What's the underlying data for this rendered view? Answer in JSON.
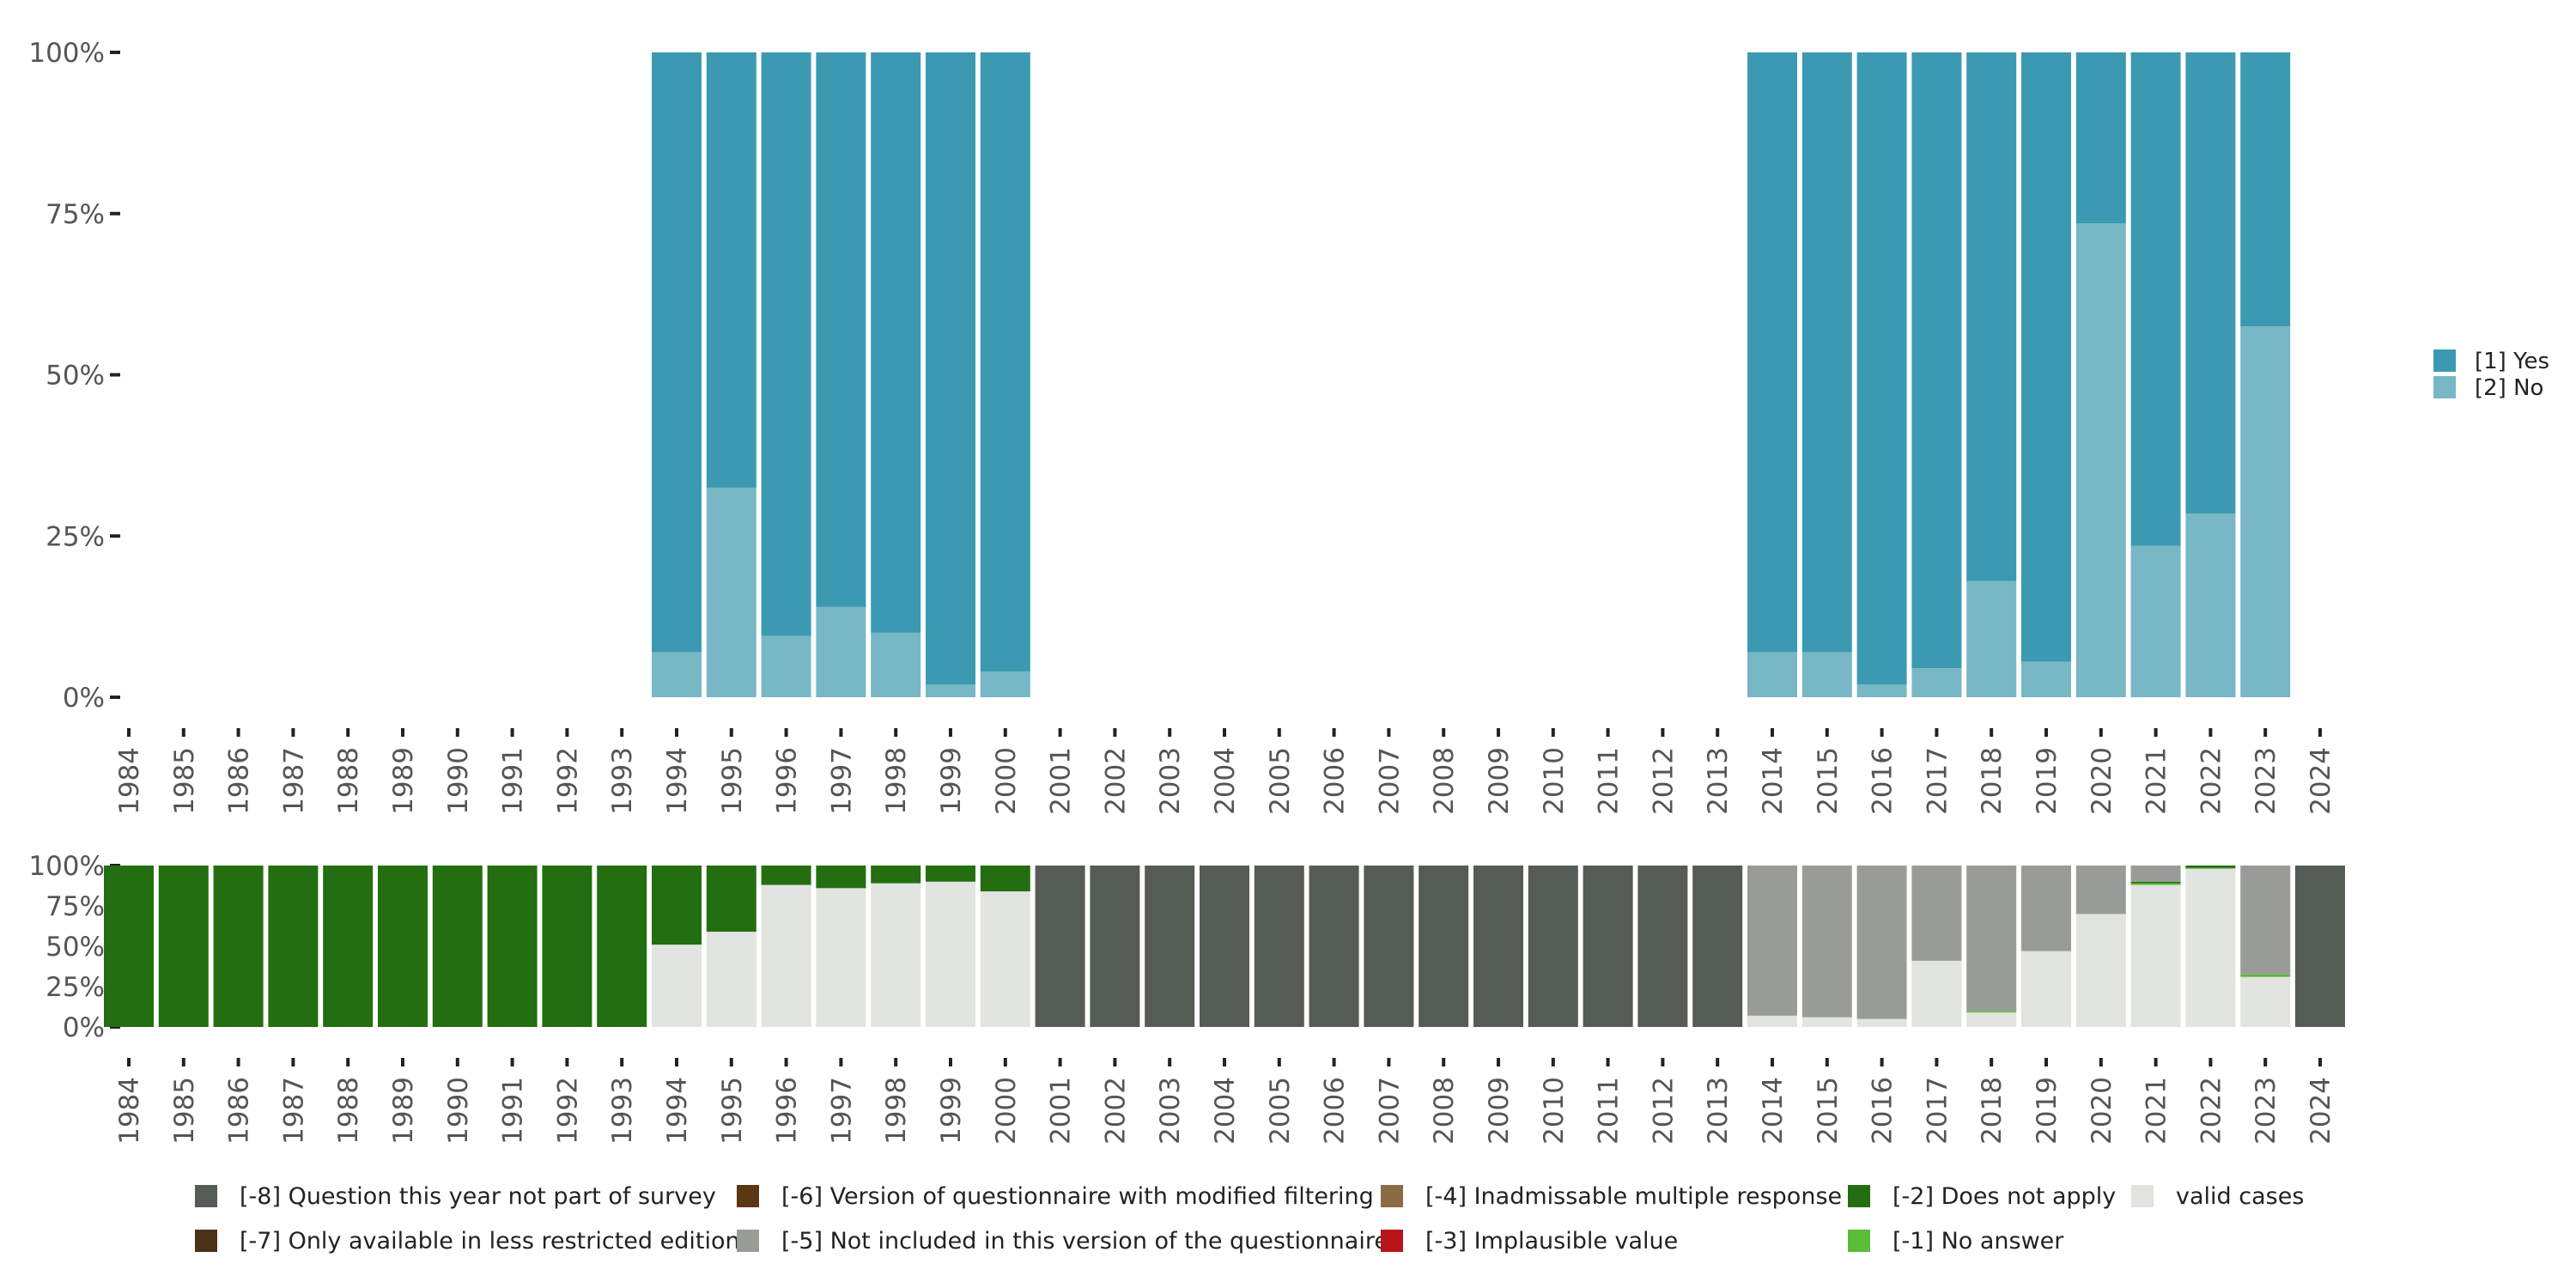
{
  "chart_data": [
    {
      "type": "bar",
      "stacked": true,
      "title": "",
      "xlabel": "",
      "ylabel": "",
      "ylim": [
        0,
        100
      ],
      "y_ticks": [
        "0%",
        "25%",
        "50%",
        "75%",
        "100%"
      ],
      "categories": [
        "1984",
        "1985",
        "1986",
        "1987",
        "1988",
        "1989",
        "1990",
        "1991",
        "1992",
        "1993",
        "1994",
        "1995",
        "1996",
        "1997",
        "1998",
        "1999",
        "2000",
        "2001",
        "2002",
        "2003",
        "2004",
        "2005",
        "2006",
        "2007",
        "2008",
        "2009",
        "2010",
        "2011",
        "2012",
        "2013",
        "2014",
        "2015",
        "2016",
        "2017",
        "2018",
        "2019",
        "2020",
        "2021",
        "2022",
        "2023",
        "2024"
      ],
      "series": [
        {
          "name": "[2] No",
          "color": "#78b7c5",
          "values": [
            null,
            null,
            null,
            null,
            null,
            null,
            null,
            null,
            null,
            null,
            7,
            32.5,
            9.5,
            14,
            10,
            2,
            4,
            null,
            null,
            null,
            null,
            null,
            null,
            null,
            null,
            null,
            null,
            null,
            null,
            null,
            7,
            7,
            2,
            4.5,
            18,
            5.5,
            73.5,
            23.5,
            28.5,
            57.5,
            null
          ]
        },
        {
          "name": "[1] Yes",
          "color": "#3b9ab2",
          "values": [
            null,
            null,
            null,
            null,
            null,
            null,
            null,
            null,
            null,
            null,
            93,
            67.5,
            90.5,
            86,
            90,
            98,
            96,
            null,
            null,
            null,
            null,
            null,
            null,
            null,
            null,
            null,
            null,
            null,
            null,
            null,
            93,
            93,
            98,
            95.5,
            82,
            94.5,
            26.5,
            76.5,
            71.5,
            42.5,
            null
          ]
        }
      ],
      "legend": {
        "position": "right",
        "entries": [
          {
            "label": "[1] Yes",
            "color": "#3b9ab2"
          },
          {
            "label": "[2] No",
            "color": "#78b7c5"
          }
        ]
      }
    },
    {
      "type": "bar",
      "stacked": true,
      "title": "",
      "xlabel": "",
      "ylabel": "",
      "ylim": [
        0,
        100
      ],
      "y_ticks": [
        "0%",
        "25%",
        "50%",
        "75%",
        "100%"
      ],
      "categories": [
        "1984",
        "1985",
        "1986",
        "1987",
        "1988",
        "1989",
        "1990",
        "1991",
        "1992",
        "1993",
        "1994",
        "1995",
        "1996",
        "1997",
        "1998",
        "1999",
        "2000",
        "2001",
        "2002",
        "2003",
        "2004",
        "2005",
        "2006",
        "2007",
        "2008",
        "2009",
        "2010",
        "2011",
        "2012",
        "2013",
        "2014",
        "2015",
        "2016",
        "2017",
        "2018",
        "2019",
        "2020",
        "2021",
        "2022",
        "2023",
        "2024"
      ],
      "series": [
        {
          "name": "valid cases",
          "color": "#e1e4df",
          "values": [
            0,
            0,
            0,
            0,
            0,
            0,
            0,
            0,
            0,
            0,
            51,
            59,
            88,
            86,
            89,
            90,
            84,
            0,
            0,
            0,
            0,
            0,
            0,
            0,
            0,
            0,
            0,
            0,
            0,
            0,
            7,
            6,
            5,
            41,
            9,
            47,
            70,
            88,
            98,
            31,
            0
          ]
        },
        {
          "name": "[-1] No answer",
          "color": "#5bbc3a",
          "values": [
            0,
            0,
            0,
            0,
            0,
            0,
            0,
            0,
            0,
            0,
            0,
            0,
            0,
            0,
            0,
            0,
            0,
            0,
            0,
            0,
            0,
            0,
            0,
            0,
            0,
            0,
            0,
            0,
            0,
            0,
            0,
            0,
            0,
            0,
            1,
            0,
            0,
            1,
            0.5,
            1.5,
            0
          ]
        },
        {
          "name": "[-2] Does not apply",
          "color": "#236e10",
          "values": [
            100,
            100,
            100,
            100,
            100,
            100,
            100,
            100,
            100,
            100,
            49,
            41,
            12,
            14,
            11,
            10,
            16,
            0,
            0,
            0,
            0,
            0,
            0,
            0,
            0,
            0,
            0,
            0,
            0,
            0,
            0,
            0,
            0,
            0,
            0,
            0,
            0,
            1,
            1.5,
            0,
            0
          ]
        },
        {
          "name": "[-5] Not included in this version of the questionnaire",
          "color": "#999c96",
          "values": [
            0,
            0,
            0,
            0,
            0,
            0,
            0,
            0,
            0,
            0,
            0,
            0,
            0,
            0,
            0,
            0,
            0,
            0,
            0,
            0,
            0,
            0,
            0,
            0,
            0,
            0,
            0,
            0,
            0,
            0,
            93,
            94,
            95,
            59,
            90,
            53,
            30,
            10,
            0,
            67.5,
            0
          ]
        },
        {
          "name": "[-8] Question this year not part of survey",
          "color": "#555b55",
          "values": [
            0,
            0,
            0,
            0,
            0,
            0,
            0,
            0,
            0,
            0,
            0,
            0,
            0,
            0,
            0,
            0,
            0,
            100,
            100,
            100,
            100,
            100,
            100,
            100,
            100,
            100,
            100,
            100,
            100,
            100,
            0,
            0,
            0,
            0,
            0,
            0,
            0,
            0,
            0,
            0,
            100
          ]
        }
      ],
      "legend": {
        "position": "bottom",
        "entries": [
          {
            "label": "[-8] Question this year not part of survey",
            "color": "#555b55"
          },
          {
            "label": "[-7] Only available in less restricted edition",
            "color": "#4a3219"
          },
          {
            "label": "[-6] Version of questionnaire with modified filtering",
            "color": "#5c3714"
          },
          {
            "label": "[-5] Not included in this version of the questionnaire",
            "color": "#999c96"
          },
          {
            "label": "[-4] Inadmissable multiple response",
            "color": "#8c6a44"
          },
          {
            "label": "[-3] Implausible value",
            "color": "#b8141a"
          },
          {
            "label": "[-2] Does not apply",
            "color": "#236e10"
          },
          {
            "label": "[-1] No answer",
            "color": "#5bbc3a"
          },
          {
            "label": "valid cases",
            "color": "#e1e4df"
          }
        ]
      }
    }
  ]
}
